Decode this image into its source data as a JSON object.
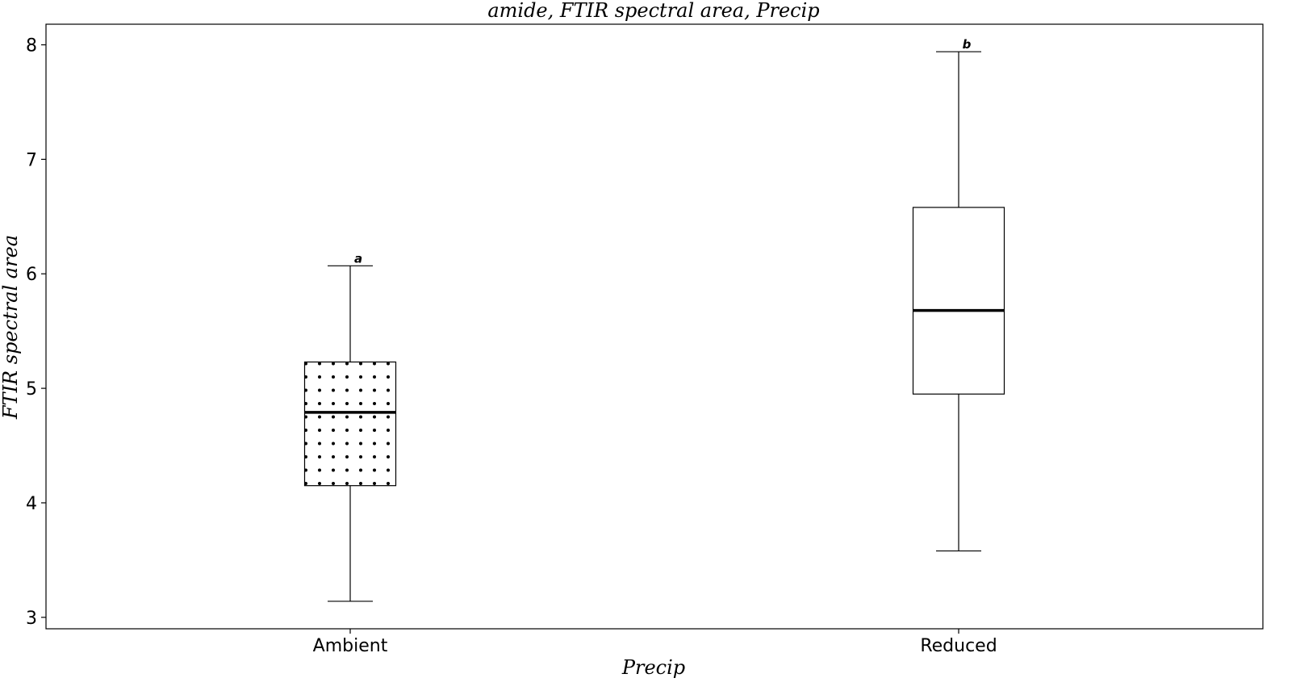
{
  "chart_data": {
    "type": "box",
    "title": "amide, FTIR spectral area, Precip",
    "xlabel": "Precip",
    "ylabel": "FTIR spectral area",
    "categories": [
      "Ambient",
      "Reduced"
    ],
    "ylim": [
      2.9,
      8.18
    ],
    "yticks": [
      3,
      4,
      5,
      6,
      7,
      8
    ],
    "grid": false,
    "boxes": [
      {
        "category": "Ambient",
        "whisker_low": 3.14,
        "q1": 4.15,
        "median": 4.79,
        "q3": 5.23,
        "whisker_high": 6.07,
        "significance": "a",
        "fill": "dots"
      },
      {
        "category": "Reduced",
        "whisker_low": 3.58,
        "q1": 4.95,
        "median": 5.68,
        "q3": 6.58,
        "whisker_high": 7.94,
        "significance": "b",
        "fill": "none"
      }
    ]
  }
}
